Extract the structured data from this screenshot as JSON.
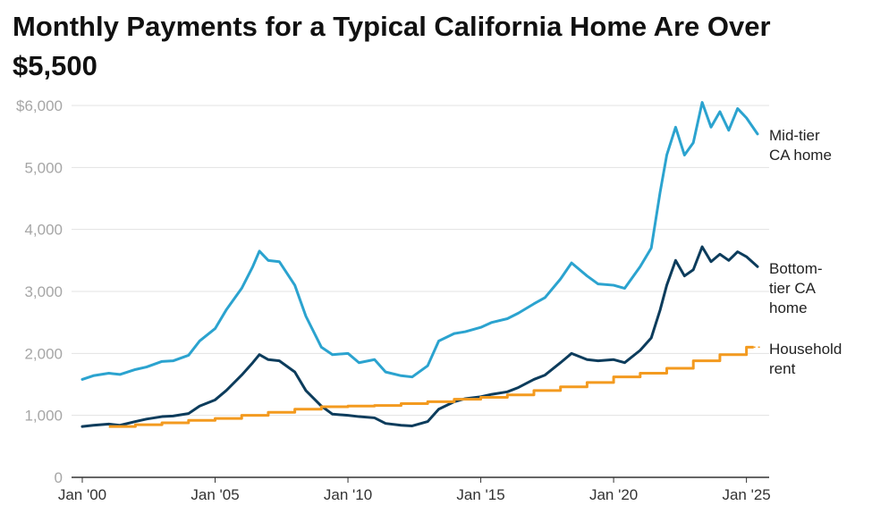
{
  "chart_data": {
    "type": "line",
    "title": "Monthly Payments for a Typical California Home Are Over $5,500",
    "xlabel": "",
    "ylabel": "",
    "ylim": [
      0,
      6000
    ],
    "xlim": [
      "2000-01",
      "2025-06"
    ],
    "grid": true,
    "y_ticks": [
      {
        "value": 0,
        "label": "0"
      },
      {
        "value": 1000,
        "label": "1,000"
      },
      {
        "value": 2000,
        "label": "2,000"
      },
      {
        "value": 3000,
        "label": "3,000"
      },
      {
        "value": 4000,
        "label": "4,000"
      },
      {
        "value": 5000,
        "label": "5,000"
      },
      {
        "value": 6000,
        "label": "$6,000"
      }
    ],
    "x_ticks": [
      {
        "date": "2000-01",
        "label": "Jan '00"
      },
      {
        "date": "2005-01",
        "label": "Jan '05"
      },
      {
        "date": "2010-01",
        "label": "Jan '10"
      },
      {
        "date": "2015-01",
        "label": "Jan '15"
      },
      {
        "date": "2020-01",
        "label": "Jan '20"
      },
      {
        "date": "2025-01",
        "label": "Jan '25"
      }
    ],
    "series": [
      {
        "name": "Mid-tier CA home",
        "label_lines": [
          "Mid-tier",
          "CA home"
        ],
        "color": "#2ba3cf",
        "style": "solid",
        "points": [
          [
            "2000-01",
            1580
          ],
          [
            "2000-06",
            1640
          ],
          [
            "2001-01",
            1680
          ],
          [
            "2001-06",
            1660
          ],
          [
            "2002-01",
            1740
          ],
          [
            "2002-06",
            1780
          ],
          [
            "2003-01",
            1870
          ],
          [
            "2003-06",
            1880
          ],
          [
            "2004-01",
            1970
          ],
          [
            "2004-06",
            2200
          ],
          [
            "2005-01",
            2400
          ],
          [
            "2005-06",
            2700
          ],
          [
            "2006-01",
            3050
          ],
          [
            "2006-06",
            3400
          ],
          [
            "2006-09",
            3650
          ],
          [
            "2007-01",
            3500
          ],
          [
            "2007-06",
            3480
          ],
          [
            "2008-01",
            3100
          ],
          [
            "2008-06",
            2600
          ],
          [
            "2009-01",
            2100
          ],
          [
            "2009-06",
            1980
          ],
          [
            "2010-01",
            2000
          ],
          [
            "2010-06",
            1850
          ],
          [
            "2011-01",
            1900
          ],
          [
            "2011-06",
            1700
          ],
          [
            "2012-01",
            1640
          ],
          [
            "2012-06",
            1620
          ],
          [
            "2013-01",
            1800
          ],
          [
            "2013-06",
            2200
          ],
          [
            "2014-01",
            2320
          ],
          [
            "2014-06",
            2350
          ],
          [
            "2015-01",
            2420
          ],
          [
            "2015-06",
            2500
          ],
          [
            "2016-01",
            2560
          ],
          [
            "2016-06",
            2650
          ],
          [
            "2017-01",
            2800
          ],
          [
            "2017-06",
            2900
          ],
          [
            "2018-01",
            3200
          ],
          [
            "2018-06",
            3460
          ],
          [
            "2019-01",
            3250
          ],
          [
            "2019-06",
            3120
          ],
          [
            "2020-01",
            3100
          ],
          [
            "2020-06",
            3050
          ],
          [
            "2021-01",
            3400
          ],
          [
            "2021-06",
            3700
          ],
          [
            "2021-10",
            4600
          ],
          [
            "2022-01",
            5200
          ],
          [
            "2022-05",
            5650
          ],
          [
            "2022-09",
            5200
          ],
          [
            "2023-01",
            5400
          ],
          [
            "2023-05",
            6050
          ],
          [
            "2023-09",
            5650
          ],
          [
            "2024-01",
            5900
          ],
          [
            "2024-05",
            5600
          ],
          [
            "2024-09",
            5950
          ],
          [
            "2025-01",
            5800
          ],
          [
            "2025-06",
            5540
          ]
        ]
      },
      {
        "name": "Bottom-tier CA home",
        "label_lines": [
          "Bottom-",
          "tier CA",
          "home"
        ],
        "color": "#0c3c5c",
        "style": "solid",
        "points": [
          [
            "2000-01",
            820
          ],
          [
            "2000-06",
            840
          ],
          [
            "2001-01",
            860
          ],
          [
            "2001-06",
            840
          ],
          [
            "2002-01",
            900
          ],
          [
            "2002-06",
            940
          ],
          [
            "2003-01",
            980
          ],
          [
            "2003-06",
            990
          ],
          [
            "2004-01",
            1030
          ],
          [
            "2004-06",
            1150
          ],
          [
            "2005-01",
            1250
          ],
          [
            "2005-06",
            1400
          ],
          [
            "2006-01",
            1650
          ],
          [
            "2006-06",
            1850
          ],
          [
            "2006-09",
            1980
          ],
          [
            "2007-01",
            1900
          ],
          [
            "2007-06",
            1880
          ],
          [
            "2008-01",
            1700
          ],
          [
            "2008-06",
            1400
          ],
          [
            "2009-01",
            1150
          ],
          [
            "2009-06",
            1020
          ],
          [
            "2010-01",
            1000
          ],
          [
            "2010-06",
            980
          ],
          [
            "2011-01",
            960
          ],
          [
            "2011-06",
            870
          ],
          [
            "2012-01",
            840
          ],
          [
            "2012-06",
            830
          ],
          [
            "2013-01",
            900
          ],
          [
            "2013-06",
            1100
          ],
          [
            "2014-01",
            1220
          ],
          [
            "2014-06",
            1270
          ],
          [
            "2015-01",
            1300
          ],
          [
            "2015-06",
            1340
          ],
          [
            "2016-01",
            1380
          ],
          [
            "2016-06",
            1450
          ],
          [
            "2017-01",
            1580
          ],
          [
            "2017-06",
            1650
          ],
          [
            "2018-01",
            1850
          ],
          [
            "2018-06",
            2000
          ],
          [
            "2019-01",
            1900
          ],
          [
            "2019-06",
            1880
          ],
          [
            "2020-01",
            1900
          ],
          [
            "2020-06",
            1850
          ],
          [
            "2021-01",
            2050
          ],
          [
            "2021-06",
            2250
          ],
          [
            "2021-10",
            2700
          ],
          [
            "2022-01",
            3100
          ],
          [
            "2022-05",
            3500
          ],
          [
            "2022-09",
            3250
          ],
          [
            "2023-01",
            3350
          ],
          [
            "2023-05",
            3720
          ],
          [
            "2023-09",
            3480
          ],
          [
            "2024-01",
            3600
          ],
          [
            "2024-05",
            3500
          ],
          [
            "2024-09",
            3640
          ],
          [
            "2025-01",
            3560
          ],
          [
            "2025-06",
            3400
          ]
        ]
      },
      {
        "name": "Household rent",
        "label_lines": [
          "Household",
          "rent"
        ],
        "color": "#f39a1f",
        "style": "step",
        "points": [
          [
            "2001-01",
            820
          ],
          [
            "2002-01",
            850
          ],
          [
            "2003-01",
            880
          ],
          [
            "2004-01",
            920
          ],
          [
            "2005-01",
            950
          ],
          [
            "2006-01",
            1000
          ],
          [
            "2007-01",
            1050
          ],
          [
            "2008-01",
            1100
          ],
          [
            "2009-01",
            1140
          ],
          [
            "2010-01",
            1150
          ],
          [
            "2011-01",
            1160
          ],
          [
            "2012-01",
            1190
          ],
          [
            "2013-01",
            1220
          ],
          [
            "2014-01",
            1260
          ],
          [
            "2015-01",
            1290
          ],
          [
            "2016-01",
            1330
          ],
          [
            "2017-01",
            1400
          ],
          [
            "2018-01",
            1460
          ],
          [
            "2019-01",
            1530
          ],
          [
            "2020-01",
            1620
          ],
          [
            "2021-01",
            1680
          ],
          [
            "2022-01",
            1760
          ],
          [
            "2023-01",
            1880
          ],
          [
            "2024-01",
            1980
          ],
          [
            "2025-01",
            2100
          ]
        ],
        "end": "2025-01",
        "dotted_extension_to": "2025-06"
      }
    ]
  }
}
